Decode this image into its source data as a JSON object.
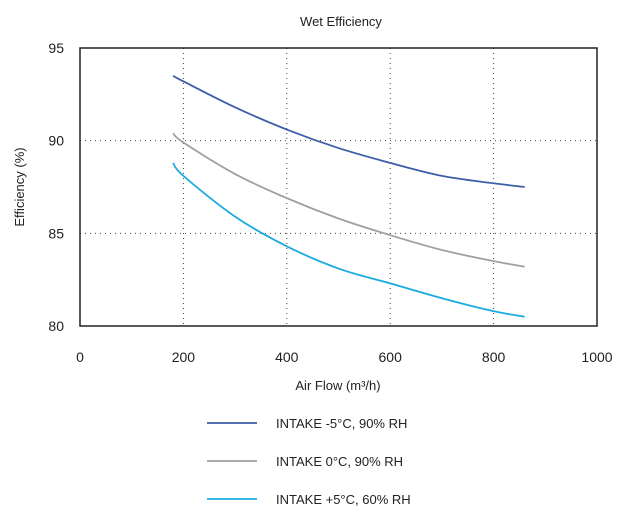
{
  "chart_data": {
    "type": "line",
    "title": "Wet Efficiency",
    "xlabel": "Air Flow (m³/h)",
    "ylabel": "Efficiency (%)",
    "xlim": [
      0,
      1000
    ],
    "ylim": [
      80,
      95
    ],
    "x_ticks": [
      0,
      200,
      400,
      600,
      800,
      1000
    ],
    "y_ticks": [
      80,
      85,
      90,
      95
    ],
    "x_tick_labels": [
      "0",
      "200",
      "400",
      "600",
      "800",
      "1000"
    ],
    "y_tick_labels": [
      "80",
      "85",
      "90",
      "95"
    ],
    "grid": true,
    "grid_style": "dotted",
    "legend_position": "bottom",
    "series": [
      {
        "name": "INTAKE -5°C, 90% RH",
        "color": "#3b5ea8",
        "x": [
          180,
          200,
          300,
          400,
          500,
          600,
          700,
          800,
          860
        ],
        "y": [
          93.5,
          93.2,
          91.8,
          90.6,
          89.6,
          88.8,
          88.1,
          87.7,
          87.5
        ]
      },
      {
        "name": "INTAKE 0°C, 90% RH",
        "color": "#a0a0a0",
        "x": [
          180,
          200,
          300,
          400,
          500,
          600,
          700,
          800,
          860
        ],
        "y": [
          90.4,
          89.9,
          88.2,
          86.9,
          85.8,
          84.9,
          84.1,
          83.5,
          83.2
        ]
      },
      {
        "name": "INTAKE +5°C, 60% RH",
        "color": "#1aabe0",
        "x": [
          180,
          200,
          300,
          400,
          500,
          600,
          700,
          800,
          860
        ],
        "y": [
          88.8,
          88.1,
          85.9,
          84.3,
          83.1,
          82.3,
          81.5,
          80.8,
          80.5
        ]
      }
    ]
  }
}
